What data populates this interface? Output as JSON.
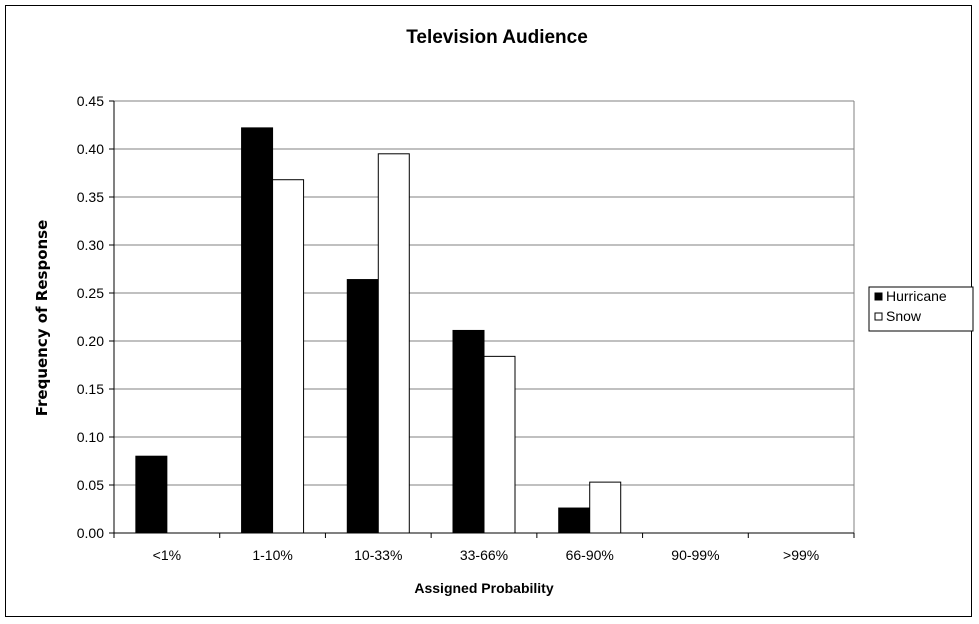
{
  "chart_data": {
    "type": "bar",
    "title": "Television Audience",
    "xlabel": "Assigned Probability",
    "ylabel": "Frequency of Response",
    "categories": [
      "<1%",
      "1-10%",
      "10-33%",
      "33-66%",
      "66-90%",
      "90-99%",
      ">99%"
    ],
    "series": [
      {
        "name": "Hurricane",
        "values": [
          0.08,
          0.422,
          0.264,
          0.211,
          0.026,
          0,
          0
        ],
        "color": "#000000"
      },
      {
        "name": "Snow",
        "values": [
          0,
          0.368,
          0.395,
          0.184,
          0.053,
          0,
          0
        ],
        "color": "#ffffff"
      }
    ],
    "ylim": [
      0,
      0.45
    ],
    "yticks": [
      "0.00",
      "0.05",
      "0.10",
      "0.15",
      "0.20",
      "0.25",
      "0.30",
      "0.35",
      "0.40",
      "0.45"
    ],
    "grid": true,
    "legend": "right"
  }
}
